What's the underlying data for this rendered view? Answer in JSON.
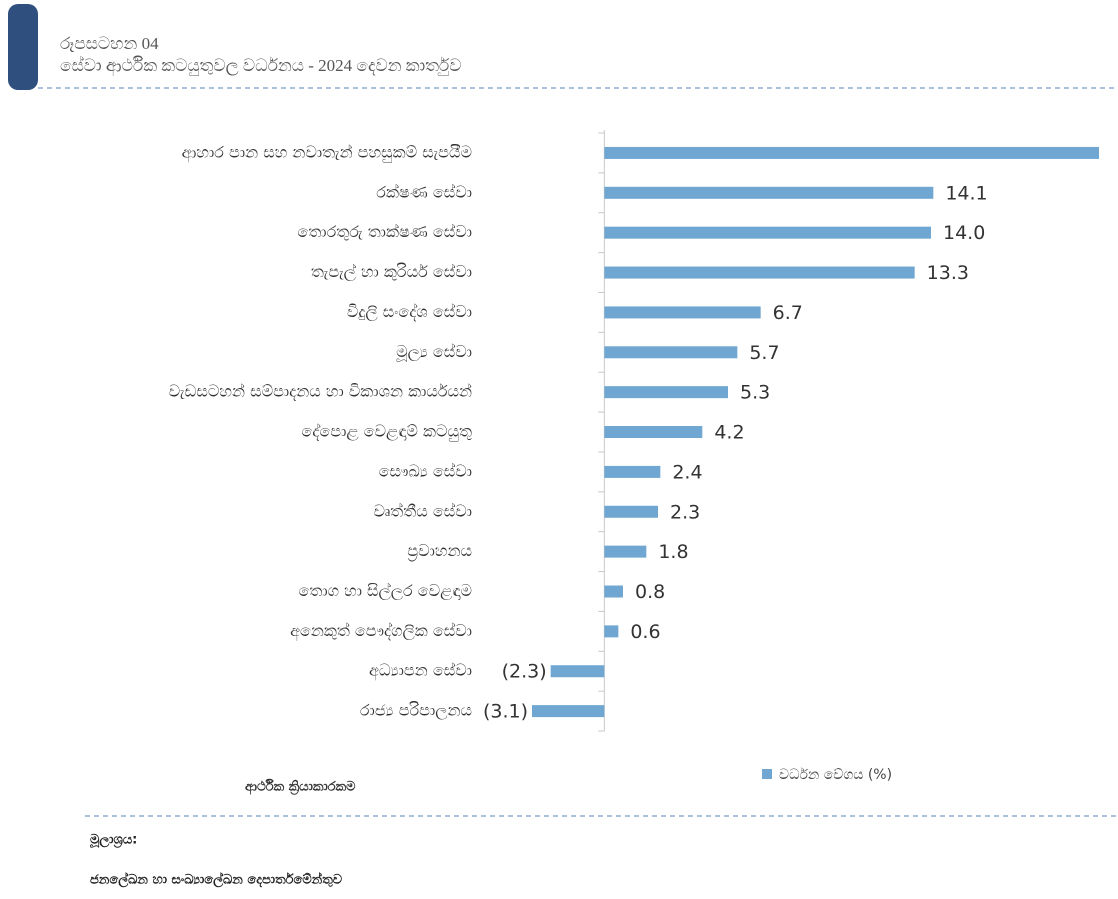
{
  "header": {
    "label": "රූපසටහන 04",
    "title": "සේවා ආර්ථික කටයුතුවල වර්ධනය -  2024 දෙවන කාර්තුව"
  },
  "chart_data": {
    "type": "hbar",
    "categories": [
      "ආහාර පාන සහ නවාතැන් පහසුකම් සැපයීම",
      "රක්ෂණ සේවා",
      "තොරතුරු තාක්ෂණ සේවා",
      "තැපැල් හා කුරියර් සේවා",
      "විදුලි සංදේශ සේවා",
      "මූල්‍ය සේවා",
      "වැඩසටහන් සම්පාදනය හා විකාශන කාර්යයන්",
      "දේපොළ වෙළඳාම් කටයුතු",
      "සෞඛ්‍ය සේවා",
      "වෘත්තීය සේවා",
      "ප්‍රවාහනය",
      "තොග හා සිල්ලර වෙළඳාම",
      "අනෙකුත් පෞද්ගලික සේවා",
      "අධ්‍යාපන සේවා",
      "රාජ්‍ය පරිපාලනය"
    ],
    "series": [
      {
        "name": "වර්ධන වේගය (%)",
        "color": "#6fa7d2",
        "values": [
          21.2,
          14.1,
          14.0,
          13.3,
          6.7,
          5.7,
          5.3,
          4.2,
          2.4,
          2.3,
          1.8,
          0.8,
          0.6,
          -2.3,
          -3.1
        ],
        "value_labels": [
          null,
          "14.1",
          "14.0",
          "13.3",
          "6.7",
          "5.7",
          "5.3",
          "4.2",
          "2.4",
          "2.3",
          "1.8",
          "0.8",
          "0.6",
          "(2.3)",
          "(3.1)"
        ]
      }
    ],
    "xlim": [
      -3.1,
      21.2
    ],
    "axis_label": "ආර්ථික ක්‍රියාකාරකම"
  },
  "source": {
    "label": "මූලාශ්‍රය:",
    "text": "ජනලේඛන හා සංඛ්‍යාලේඛන දෙපාර්තමේන්තුව"
  }
}
